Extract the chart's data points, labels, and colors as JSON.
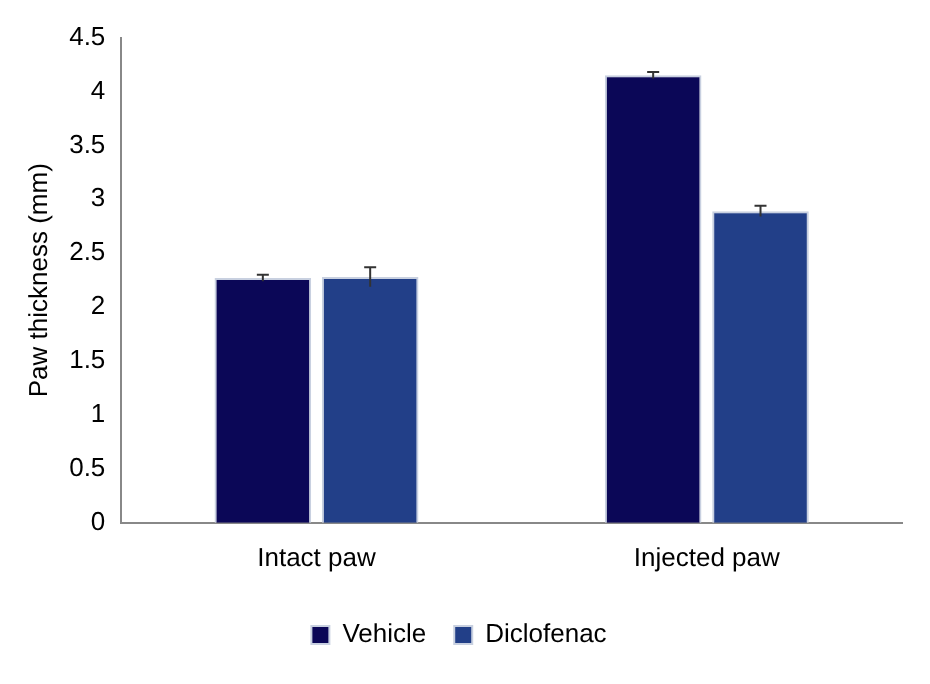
{
  "chart_data": {
    "type": "bar",
    "ylabel": "Paw thickness (mm)",
    "categories": [
      "Intact paw",
      "Injected paw"
    ],
    "series": [
      {
        "name": "Vehicle",
        "color": "#0b0757",
        "values": [
          2.27,
          4.15
        ],
        "errors": [
          0.03,
          0.03
        ]
      },
      {
        "name": "Diclofenac",
        "color": "#223f88",
        "values": [
          2.28,
          2.89
        ],
        "errors": [
          0.09,
          0.05
        ]
      }
    ],
    "ylim": [
      0,
      4.5
    ],
    "yticks": [
      0,
      0.5,
      1,
      1.5,
      2,
      2.5,
      3,
      3.5,
      4,
      4.5
    ],
    "grid": false,
    "legend": "bottom"
  }
}
